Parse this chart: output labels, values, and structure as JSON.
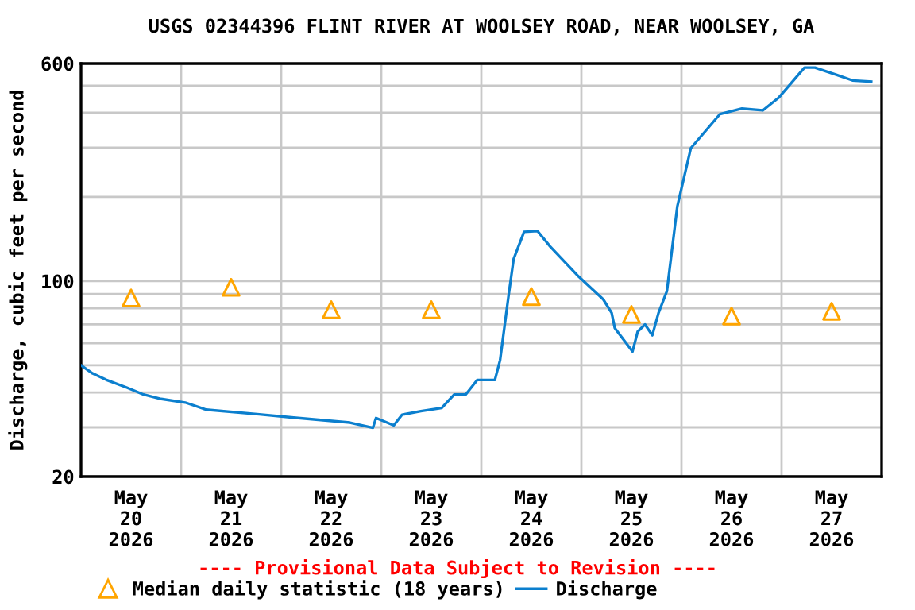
{
  "chart_data": {
    "type": "line",
    "title": "USGS 02344396 FLINT RIVER AT WOOLSEY ROAD, NEAR WOOLSEY, GA",
    "ylabel": "Discharge, cubic feet per second",
    "annotations": [
      "---- Provisional Data Subject to Revision ----"
    ],
    "log": "y",
    "grid": true,
    "legend": "bottom",
    "xlim": [
      "2026-05-20",
      "2026-05-28"
    ],
    "xticks": [
      {
        "value": "2026-05-20T00:00",
        "label": null
      },
      {
        "value": "2026-05-20T12:00",
        "label": "May\n20\n2026"
      },
      {
        "value": "2026-05-21T00:00",
        "label": null
      },
      {
        "value": "2026-05-21T12:00",
        "label": "May\n21\n2026"
      },
      {
        "value": "2026-05-22T00:00",
        "label": null
      },
      {
        "value": "2026-05-22T12:00",
        "label": "May\n22\n2026"
      },
      {
        "value": "2026-05-23T00:00",
        "label": null
      },
      {
        "value": "2026-05-23T12:00",
        "label": "May\n23\n2026"
      },
      {
        "value": "2026-05-24T00:00",
        "label": null
      },
      {
        "value": "2026-05-24T12:00",
        "label": "May\n24\n2026"
      },
      {
        "value": "2026-05-25T00:00",
        "label": null
      },
      {
        "value": "2026-05-25T12:00",
        "label": "May\n25\n2026"
      },
      {
        "value": "2026-05-26T00:00",
        "label": null
      },
      {
        "value": "2026-05-26T12:00",
        "label": "May\n26\n2026"
      },
      {
        "value": "2026-05-27T00:00",
        "label": null
      },
      {
        "value": "2026-05-27T12:00",
        "label": "May\n27\n2026"
      },
      {
        "value": "2026-05-28T00:00",
        "label": null
      }
    ],
    "ylim": [
      20,
      600
    ],
    "yticks": [
      20,
      {
        "value": 30,
        "label": null
      },
      {
        "value": 40,
        "label": null
      },
      {
        "value": 50,
        "label": null
      },
      {
        "value": 60,
        "label": null
      },
      {
        "value": 70,
        "label": null
      },
      {
        "value": 80,
        "label": null
      },
      {
        "value": 90,
        "label": null
      },
      100,
      {
        "value": 200,
        "label": null
      },
      {
        "value": 300,
        "label": null
      },
      {
        "value": 400,
        "label": null
      },
      {
        "value": 500,
        "label": null
      },
      600
    ],
    "series": [
      {
        "name": "Median daily statistic (18 years)",
        "type": "scatter",
        "marker": "triangle",
        "color": "#ffa500",
        "x": [
          "2026-05-20T12:00",
          "2026-05-21T12:00",
          "2026-05-22T12:00",
          "2026-05-23T12:00",
          "2026-05-24T12:00",
          "2026-05-25T12:00",
          "2026-05-26T12:00",
          "2026-05-27T12:00"
        ],
        "values": [
          87,
          95,
          79,
          79,
          88,
          76,
          75,
          78
        ]
      },
      {
        "name": "Discharge",
        "marker": "none",
        "color": "#0b7fce",
        "x": [
          "2026-05-20T00:00",
          "2026-05-20T02:45",
          "2026-05-20T06:00",
          "2026-05-20T11:00",
          "2026-05-20T15:00",
          "2026-05-20T19:15",
          "2026-05-21T01:00",
          "2026-05-21T06:00",
          "2026-05-21T18:45",
          "2026-05-22T03:00",
          "2026-05-22T16:30",
          "2026-05-22T22:00",
          "2026-05-22T22:45",
          "2026-05-23T03:00",
          "2026-05-23T05:00",
          "2026-05-23T09:30",
          "2026-05-23T14:30",
          "2026-05-23T17:30",
          "2026-05-23T20:15",
          "2026-05-23T23:00",
          "2026-05-24T03:15",
          "2026-05-24T04:30",
          "2026-05-24T06:30",
          "2026-05-24T07:45",
          "2026-05-24T10:15",
          "2026-05-24T13:30",
          "2026-05-24T16:30",
          "2026-05-24T23:00",
          "2026-05-25T05:15",
          "2026-05-25T07:15",
          "2026-05-25T08:00",
          "2026-05-25T12:15",
          "2026-05-25T13:30",
          "2026-05-25T15:15",
          "2026-05-25T17:00",
          "2026-05-25T18:30",
          "2026-05-25T20:30",
          "2026-05-25T23:00",
          "2026-05-26T02:15",
          "2026-05-26T09:15",
          "2026-05-26T14:30",
          "2026-05-26T19:30",
          "2026-05-26T23:15",
          "2026-05-27T05:30",
          "2026-05-27T08:00",
          "2026-05-27T13:15",
          "2026-05-27T17:00",
          "2026-05-27T21:30"
        ],
        "values": [
          50,
          46.8,
          44.4,
          41.6,
          39.3,
          37.9,
          36.8,
          34.7,
          33.4,
          32.5,
          31.2,
          29.9,
          32.4,
          30.5,
          33.3,
          34.3,
          35.2,
          39.3,
          39.3,
          44.3,
          44.3,
          52.2,
          88,
          120,
          150,
          151,
          133,
          105,
          86,
          77,
          68,
          56,
          66,
          70,
          64,
          77,
          92,
          185,
          299,
          396,
          414,
          408,
          452,
          580,
          580,
          546,
          522,
          517
        ]
      }
    ]
  }
}
